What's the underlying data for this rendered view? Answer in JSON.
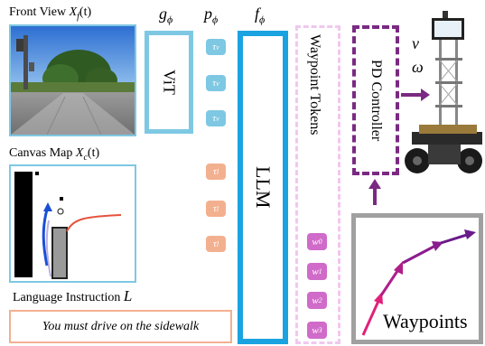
{
  "front_view": {
    "label": "Front View",
    "symbol": "X",
    "subscript": "f",
    "arg": "(t)"
  },
  "canvas_map": {
    "label": "Canvas Map",
    "symbol": "X",
    "subscript": "c",
    "arg": "(t)"
  },
  "language": {
    "label": "Language Instruction",
    "symbol": "L",
    "instruction": "You must drive on the sidewalk"
  },
  "g_phi": {
    "symbol": "g",
    "subscript": "ϕ"
  },
  "p_phi": {
    "symbol": "p",
    "subscript": "ϕ"
  },
  "f_phi": {
    "symbol": "f",
    "subscript": "ϕ"
  },
  "vit": {
    "label": "ViT"
  },
  "llm": {
    "label": "LLM"
  },
  "waypoint_tokens": {
    "label": "Waypoint Tokens",
    "tokens": [
      "w0",
      "w1",
      "w2",
      "w3"
    ]
  },
  "pd_controller": {
    "label": "PD Controller"
  },
  "control_outputs": {
    "v": "v",
    "omega": "ω"
  },
  "waypoints_panel": {
    "label": "Waypoints"
  },
  "vision_tokens": [
    {
      "base": "τ",
      "sub": "v"
    },
    {
      "base": "τ",
      "sub": "v"
    },
    {
      "base": "τ",
      "sub": "v"
    }
  ],
  "language_tokens": [
    {
      "base": "τ",
      "sub": "l"
    },
    {
      "base": "τ",
      "sub": "l"
    },
    {
      "base": "τ",
      "sub": "l"
    }
  ],
  "colors": {
    "blue": "#7ec8e3",
    "llm_blue": "#1aa3e0",
    "orange": "#f3b08f",
    "pink": "#d06bc9",
    "purple": "#7a2a82",
    "gray": "#a0a0a0"
  }
}
